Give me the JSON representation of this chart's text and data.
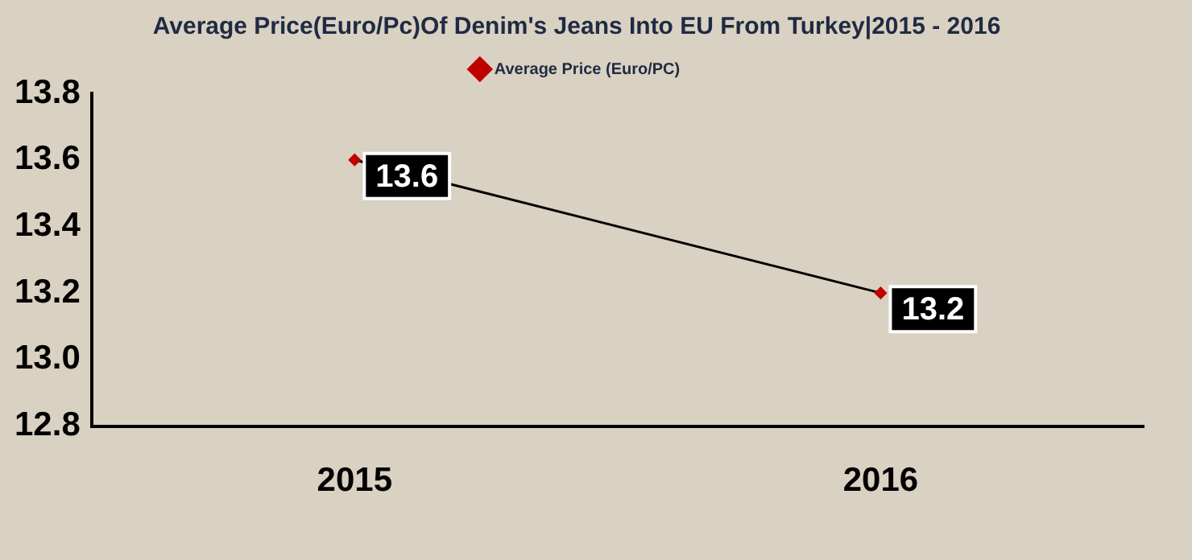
{
  "chart_data": {
    "type": "line",
    "title": "Average Price(Euro/Pc)Of Denim's Jeans Into EU From Turkey|2015 - 2016",
    "categories": [
      "2015",
      "2016"
    ],
    "series": [
      {
        "name": "Average Price (Euro/PC)",
        "color": "#000000",
        "values": [
          13.6,
          13.2
        ]
      }
    ],
    "ylim": [
      12.8,
      13.8
    ],
    "yticks": [
      {
        "value": 12.8,
        "label": "12.8"
      },
      {
        "value": 13.0,
        "label": "13.0"
      },
      {
        "value": 13.2,
        "label": "13.2"
      },
      {
        "value": 13.4,
        "label": "13.4"
      },
      {
        "value": 13.6,
        "label": "13.6"
      },
      {
        "value": 13.8,
        "label": "13.8"
      }
    ],
    "grid": false,
    "legend": "top",
    "marker": "diamond",
    "line_style": "solid",
    "data_labels": true
  }
}
